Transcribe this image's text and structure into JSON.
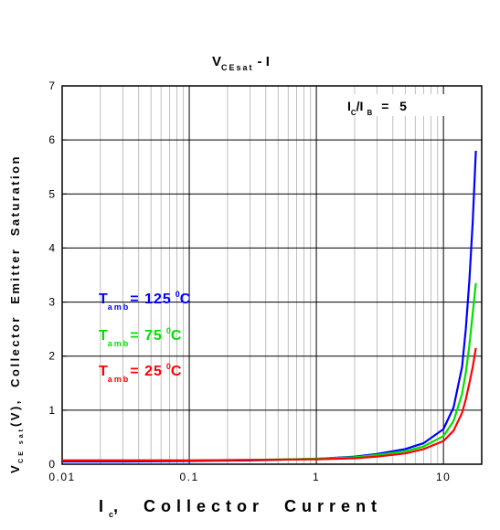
{
  "chart_data": {
    "type": "line",
    "title": "V",
    "title_sub": "CEsat",
    "title_suffix": "- I",
    "xlabel": "I",
    "xlabel_sub": "c",
    "xlabel_suffix": ",  Collector  Current",
    "ylabel": "V",
    "ylabel_sub": "CE sat",
    "ylabel_suffix": "(V),  Collector  Emitter  Saturation",
    "xscale": "log",
    "xlim": [
      0.01,
      20
    ],
    "ylim": [
      0,
      7
    ],
    "xticks": [
      0.01,
      0.1,
      1,
      10
    ],
    "xtick_labels": [
      "0.01",
      "0.1",
      "1",
      "10"
    ],
    "yticks": [
      0,
      1,
      2,
      3,
      4,
      5,
      6,
      7
    ],
    "ytick_labels": [
      "0",
      "1",
      "2",
      "3",
      "4",
      "5",
      "6",
      "7"
    ],
    "grid": true,
    "condition": {
      "prefix": "I",
      "sub1": "C",
      "mid": "/I",
      "sub2": "B",
      "suffix": "=   5"
    },
    "series": [
      {
        "name": "T amb= 125 °C",
        "label_main": "T",
        "label_sub": "amb",
        "label_value": "= 125",
        "label_unit": "0C",
        "color": "#0000ff",
        "x": [
          0.01,
          0.03,
          0.1,
          0.3,
          1,
          2,
          3,
          5,
          7,
          10,
          12,
          14,
          15,
          16,
          17,
          18
        ],
        "y": [
          0.05,
          0.05,
          0.06,
          0.07,
          0.1,
          0.14,
          0.19,
          0.28,
          0.39,
          0.65,
          1.05,
          1.8,
          2.5,
          3.4,
          4.5,
          5.8
        ]
      },
      {
        "name": "T amb= 75 °C",
        "label_main": "T",
        "label_sub": "amb",
        "label_value": "= 75",
        "label_unit": "0C",
        "color": "#00e000",
        "x": [
          0.01,
          0.03,
          0.1,
          0.3,
          1,
          2,
          3,
          5,
          7,
          10,
          12,
          14,
          15,
          16,
          17,
          18
        ],
        "y": [
          0.07,
          0.07,
          0.07,
          0.08,
          0.1,
          0.13,
          0.17,
          0.24,
          0.33,
          0.52,
          0.8,
          1.3,
          1.7,
          2.2,
          2.8,
          3.35
        ]
      },
      {
        "name": "T amb= 25 °C",
        "label_main": "T",
        "label_sub": "amb",
        "label_value": "= 25",
        "label_unit": "0C",
        "color": "#ff0000",
        "x": [
          0.01,
          0.03,
          0.1,
          0.3,
          1,
          2,
          3,
          5,
          7,
          10,
          12,
          14,
          15,
          16,
          17,
          18
        ],
        "y": [
          0.07,
          0.07,
          0.07,
          0.08,
          0.09,
          0.11,
          0.14,
          0.2,
          0.28,
          0.43,
          0.62,
          0.95,
          1.2,
          1.5,
          1.8,
          2.15
        ]
      }
    ]
  }
}
